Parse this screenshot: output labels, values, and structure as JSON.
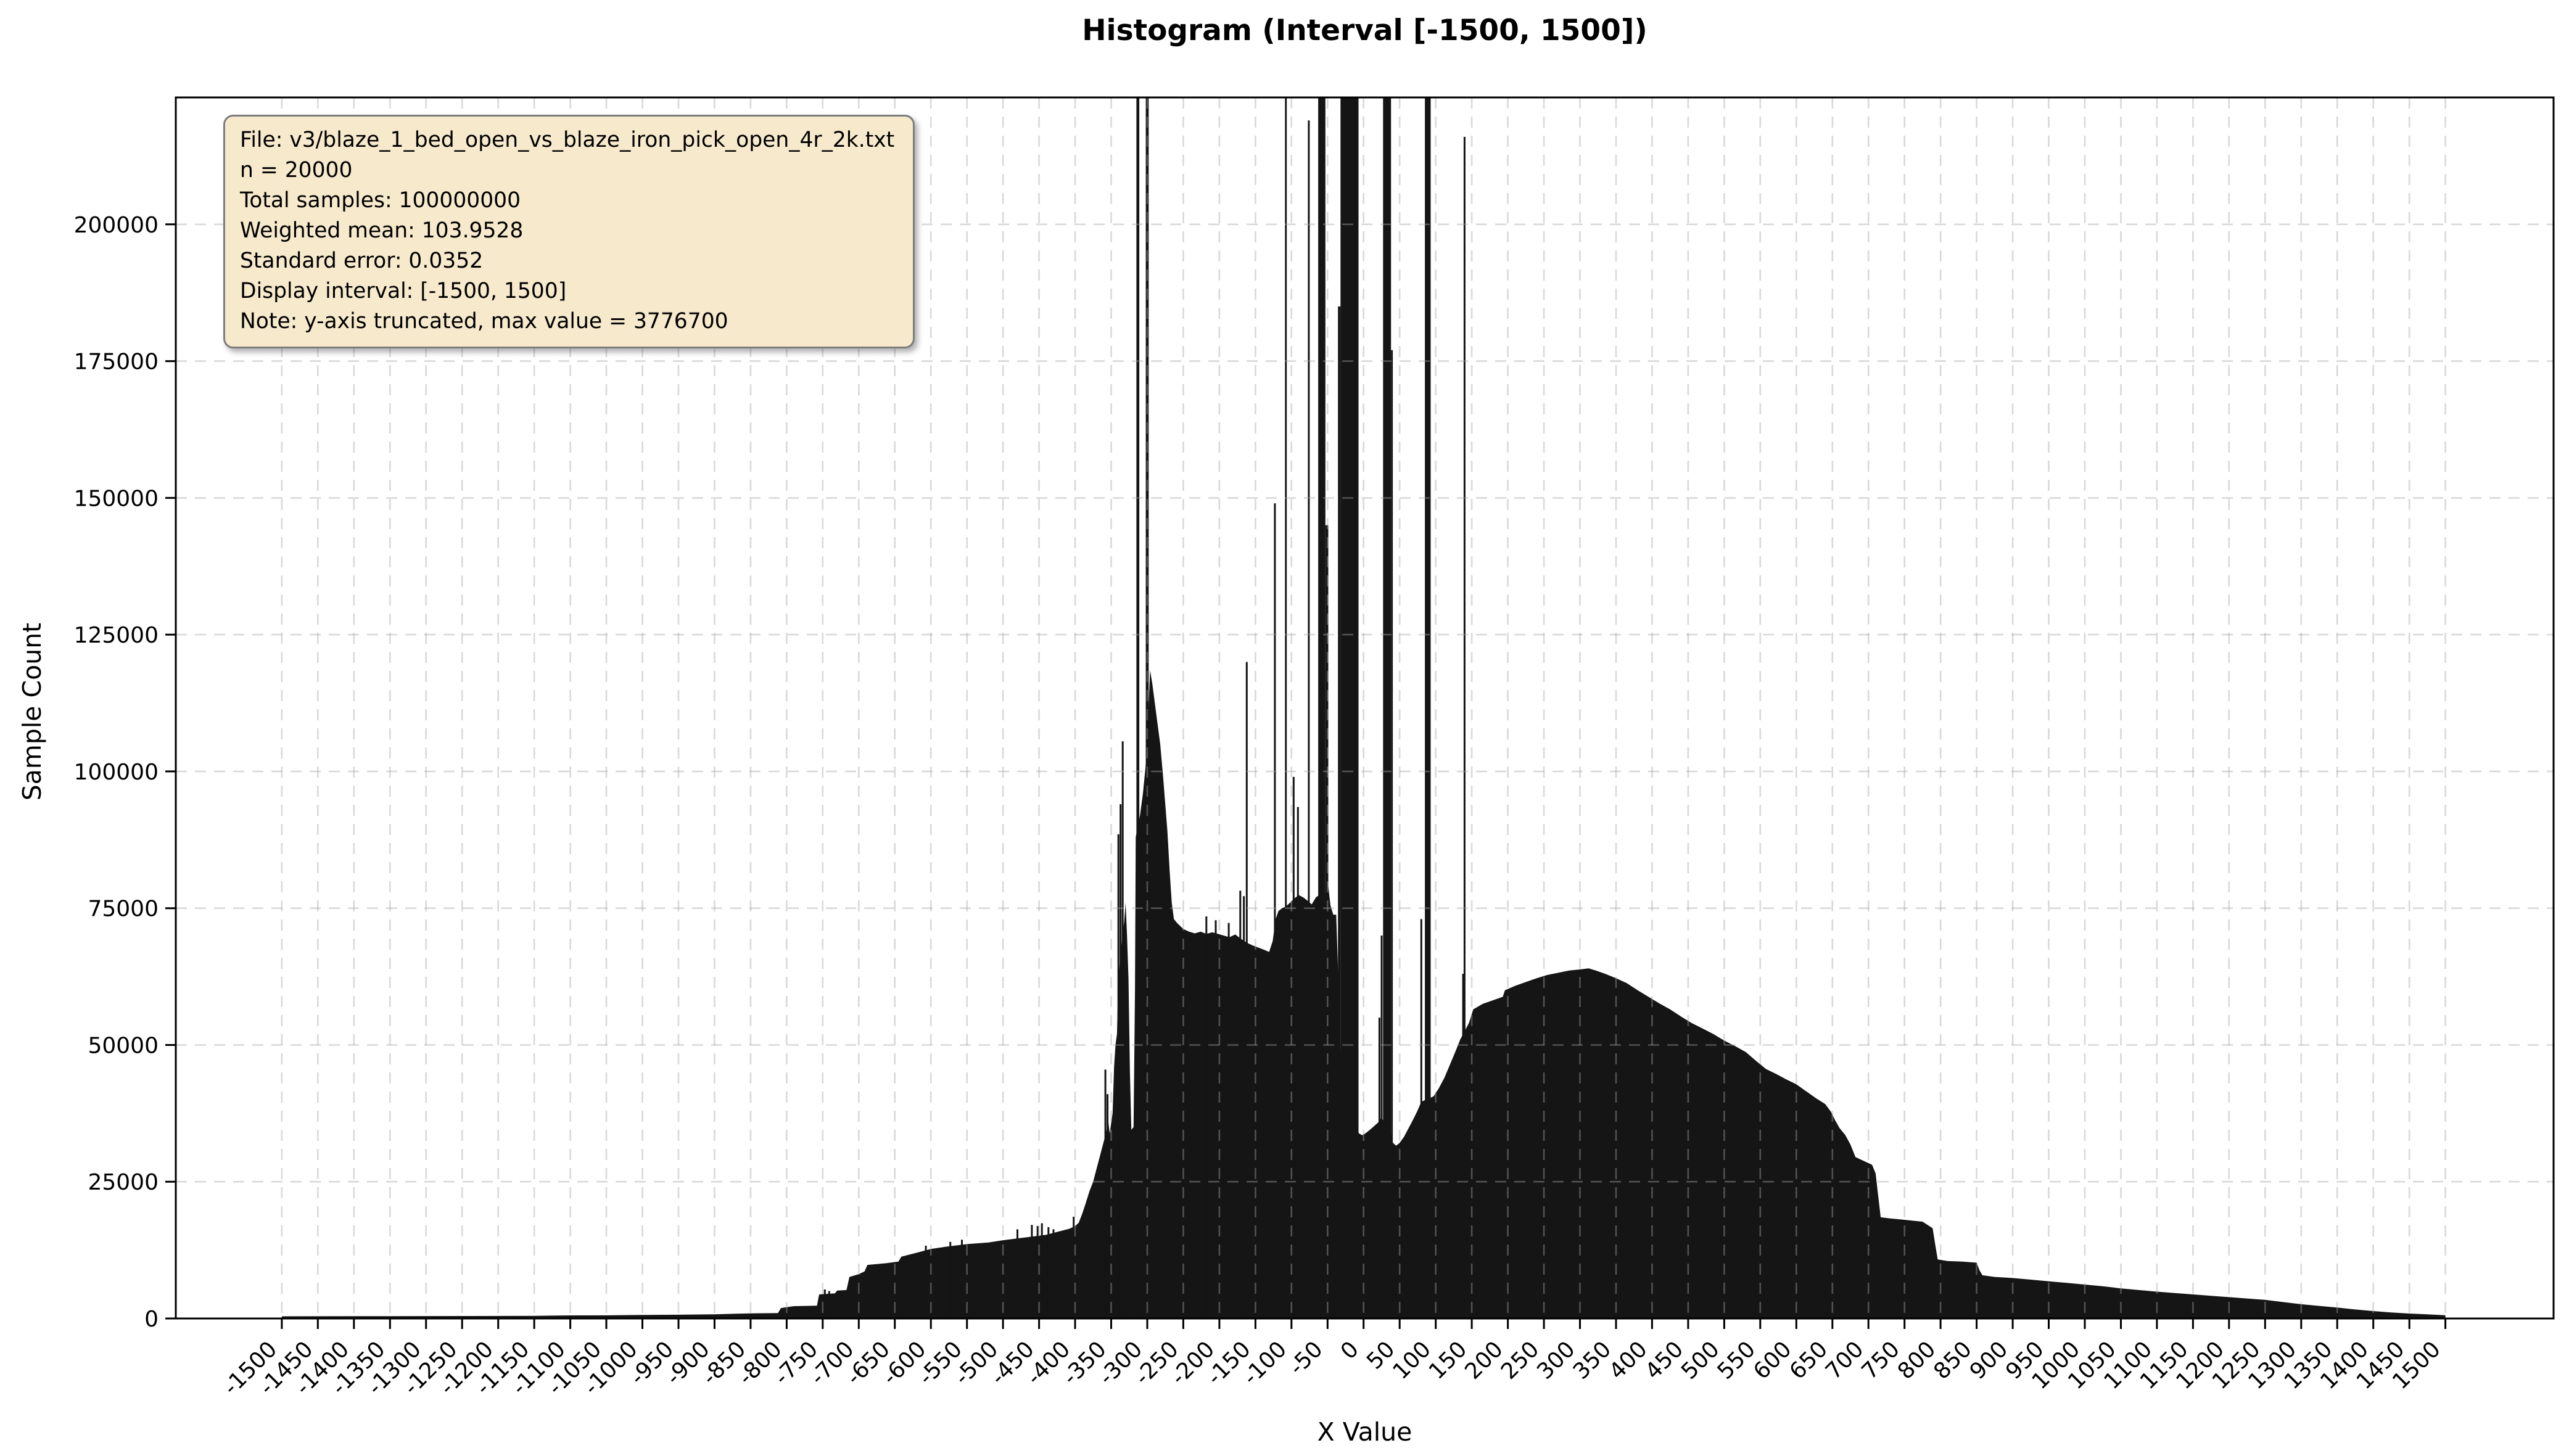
{
  "title": "Histogram (Interval [-1500, 1500])",
  "info_box": {
    "lines": [
      "File: v3/blaze_1_bed_open_vs_blaze_iron_pick_open_4r_2k.txt",
      "n = 20000",
      "Total samples: 100000000",
      "Weighted mean: 103.9528",
      "Standard error: 0.0352",
      "Display interval: [-1500, 1500]",
      "Note: y-axis truncated, max value = 3776700"
    ]
  },
  "axes": {
    "xlabel": "X Value",
    "ylabel": "Sample Count",
    "xlim": [
      -1647,
      1650
    ],
    "ylim": [
      0,
      223200
    ],
    "x_ticks": [
      -1500,
      -1450,
      -1400,
      -1350,
      -1300,
      -1250,
      -1200,
      -1150,
      -1100,
      -1050,
      -1000,
      -950,
      -900,
      -850,
      -800,
      -750,
      -700,
      -650,
      -600,
      -550,
      -500,
      -450,
      -400,
      -350,
      -300,
      -250,
      -200,
      -150,
      -100,
      -50,
      0,
      50,
      100,
      150,
      200,
      250,
      300,
      350,
      400,
      450,
      500,
      550,
      600,
      650,
      700,
      750,
      800,
      850,
      900,
      950,
      1000,
      1050,
      1100,
      1150,
      1200,
      1250,
      1300,
      1350,
      1400,
      1450,
      1500
    ],
    "y_ticks": [
      0,
      25000,
      50000,
      75000,
      100000,
      125000,
      150000,
      175000,
      200000
    ],
    "grid": true
  },
  "colors": {
    "bar": "#151515",
    "grid": "rgba(165,165,165,0.42)",
    "frame": "#000000",
    "text": "#000000",
    "box_bg": "#f6e9cc",
    "box_border": "#7d7d7d"
  },
  "chart_data": {
    "type": "bar",
    "subtype": "histogram",
    "title": "Histogram (Interval [-1500, 1500])",
    "xlabel": "X Value",
    "ylabel": "Sample Count",
    "n_bins": 20000,
    "total_samples": 100000000,
    "weighted_mean": 103.9528,
    "standard_error": 0.0352,
    "display_interval": [
      -1500,
      1500
    ],
    "y_axis_truncated": true,
    "max_bin_value": 3776700,
    "xlim": [
      -1647,
      1650
    ],
    "ylim": [
      0,
      223200
    ],
    "legend": "none",
    "envelope": [
      [
        -1500,
        400
      ],
      [
        -1450,
        410
      ],
      [
        -1400,
        420
      ],
      [
        -1350,
        430
      ],
      [
        -1300,
        440
      ],
      [
        -1250,
        450
      ],
      [
        -1200,
        460
      ],
      [
        -1150,
        490
      ],
      [
        -1100,
        560
      ],
      [
        -1050,
        580
      ],
      [
        -1000,
        640
      ],
      [
        -950,
        690
      ],
      [
        -900,
        770
      ],
      [
        -870,
        870
      ],
      [
        -845,
        950
      ],
      [
        -812,
        980
      ],
      [
        -808,
        1900
      ],
      [
        -790,
        2250
      ],
      [
        -758,
        2350
      ],
      [
        -755,
        4400
      ],
      [
        -733,
        4600
      ],
      [
        -730,
        5100
      ],
      [
        -717,
        5200
      ],
      [
        -713,
        7600
      ],
      [
        -700,
        8100
      ],
      [
        -692,
        8600
      ],
      [
        -688,
        9800
      ],
      [
        -662,
        10100
      ],
      [
        -645,
        10400
      ],
      [
        -641,
        11300
      ],
      [
        -620,
        12000
      ],
      [
        -600,
        12700
      ],
      [
        -580,
        13100
      ],
      [
        -550,
        13600
      ],
      [
        -520,
        13900
      ],
      [
        -500,
        14300
      ],
      [
        -470,
        14800
      ],
      [
        -440,
        15300
      ],
      [
        -420,
        16000
      ],
      [
        -408,
        16400
      ],
      [
        -400,
        16900
      ],
      [
        -395,
        17500
      ],
      [
        -390,
        19200
      ],
      [
        -385,
        21200
      ],
      [
        -380,
        23300
      ],
      [
        -375,
        25000
      ],
      [
        -370,
        27500
      ],
      [
        -365,
        30000
      ],
      [
        -360,
        32500
      ],
      [
        -357,
        34000
      ],
      [
        -354,
        36000
      ],
      [
        -352,
        33800
      ],
      [
        -350,
        35700
      ],
      [
        -348,
        37500
      ],
      [
        -346,
        46000
      ],
      [
        -344,
        50000
      ],
      [
        -342,
        52000
      ],
      [
        -340,
        62000
      ],
      [
        -338,
        65000
      ],
      [
        -336,
        68000
      ],
      [
        -334,
        70500
      ],
      [
        -332,
        72500
      ],
      [
        -330,
        76000
      ],
      [
        -328,
        70000
      ],
      [
        -326,
        62000
      ],
      [
        -324,
        45000
      ],
      [
        -322,
        34500
      ],
      [
        -319,
        35000
      ],
      [
        -317,
        60000
      ],
      [
        -316,
        88000
      ],
      [
        -313,
        90000
      ],
      [
        -310,
        92000
      ],
      [
        -306,
        96000
      ],
      [
        -303,
        100000
      ],
      [
        -300,
        104000
      ],
      [
        -298,
        112000
      ],
      [
        -296,
        118500
      ],
      [
        -293,
        116000
      ],
      [
        -290,
        113000
      ],
      [
        -286,
        109000
      ],
      [
        -282,
        105000
      ],
      [
        -278,
        99000
      ],
      [
        -275,
        94000
      ],
      [
        -272,
        89000
      ],
      [
        -269,
        82000
      ],
      [
        -266,
        76000
      ],
      [
        -263,
        73000
      ],
      [
        -258,
        72200
      ],
      [
        -250,
        71200
      ],
      [
        -242,
        70700
      ],
      [
        -234,
        70400
      ],
      [
        -226,
        70700
      ],
      [
        -218,
        70300
      ],
      [
        -210,
        70600
      ],
      [
        -202,
        70300
      ],
      [
        -194,
        70000
      ],
      [
        -186,
        69700
      ],
      [
        -178,
        70200
      ],
      [
        -170,
        69400
      ],
      [
        -162,
        68700
      ],
      [
        -154,
        68200
      ],
      [
        -146,
        67800
      ],
      [
        -138,
        67400
      ],
      [
        -131,
        67000
      ],
      [
        -126,
        69000
      ],
      [
        -122,
        73000
      ],
      [
        -118,
        74500
      ],
      [
        -113,
        75000
      ],
      [
        -108,
        75300
      ],
      [
        -102,
        76000
      ],
      [
        -96,
        76800
      ],
      [
        -90,
        77400
      ],
      [
        -84,
        77000
      ],
      [
        -78,
        76400
      ],
      [
        -72,
        75700
      ],
      [
        -66,
        77000
      ],
      [
        -60,
        77500
      ],
      [
        -55,
        77000
      ],
      [
        -49,
        79000
      ],
      [
        -46,
        75500
      ],
      [
        -42,
        73800
      ],
      [
        -38,
        73800
      ],
      [
        -35,
        62000
      ],
      [
        -30,
        40000
      ],
      [
        -20,
        36000
      ],
      [
        -10,
        34500
      ],
      [
        -6,
        33800
      ],
      [
        -2,
        33500
      ],
      [
        2,
        33800
      ],
      [
        8,
        34400
      ],
      [
        14,
        35100
      ],
      [
        20,
        35800
      ],
      [
        24,
        36600
      ],
      [
        30,
        36000
      ],
      [
        36,
        35000
      ],
      [
        40,
        32200
      ],
      [
        45,
        31600
      ],
      [
        50,
        32100
      ],
      [
        56,
        33200
      ],
      [
        62,
        34700
      ],
      [
        68,
        36200
      ],
      [
        74,
        37800
      ],
      [
        80,
        39600
      ],
      [
        86,
        40000
      ],
      [
        92,
        40300
      ],
      [
        97,
        40600
      ],
      [
        104,
        42000
      ],
      [
        112,
        44000
      ],
      [
        120,
        46500
      ],
      [
        128,
        49000
      ],
      [
        134,
        51000
      ],
      [
        140,
        52500
      ],
      [
        146,
        54000
      ],
      [
        152,
        56500
      ],
      [
        165,
        57500
      ],
      [
        180,
        58200
      ],
      [
        193,
        58800
      ],
      [
        196,
        60000
      ],
      [
        210,
        60800
      ],
      [
        225,
        61500
      ],
      [
        240,
        62200
      ],
      [
        255,
        62800
      ],
      [
        270,
        63200
      ],
      [
        285,
        63600
      ],
      [
        300,
        63800
      ],
      [
        312,
        64000
      ],
      [
        322,
        63600
      ],
      [
        335,
        63000
      ],
      [
        350,
        62200
      ],
      [
        365,
        61300
      ],
      [
        380,
        60000
      ],
      [
        395,
        58800
      ],
      [
        410,
        57600
      ],
      [
        425,
        56500
      ],
      [
        440,
        55200
      ],
      [
        455,
        54000
      ],
      [
        470,
        53000
      ],
      [
        485,
        52000
      ],
      [
        500,
        50800
      ],
      [
        515,
        49800
      ],
      [
        530,
        48700
      ],
      [
        545,
        47000
      ],
      [
        558,
        45600
      ],
      [
        572,
        44700
      ],
      [
        586,
        43700
      ],
      [
        600,
        42800
      ],
      [
        614,
        41500
      ],
      [
        628,
        40200
      ],
      [
        640,
        39200
      ],
      [
        648,
        37800
      ],
      [
        654,
        36200
      ],
      [
        660,
        34800
      ],
      [
        668,
        33500
      ],
      [
        675,
        31800
      ],
      [
        682,
        29500
      ],
      [
        695,
        28700
      ],
      [
        705,
        28100
      ],
      [
        710,
        26500
      ],
      [
        713,
        23000
      ],
      [
        717,
        18500
      ],
      [
        730,
        18300
      ],
      [
        745,
        18100
      ],
      [
        760,
        17900
      ],
      [
        775,
        17700
      ],
      [
        789,
        16500
      ],
      [
        792,
        14000
      ],
      [
        796,
        10800
      ],
      [
        810,
        10500
      ],
      [
        830,
        10400
      ],
      [
        850,
        10200
      ],
      [
        854,
        8800
      ],
      [
        858,
        7900
      ],
      [
        875,
        7600
      ],
      [
        900,
        7400
      ],
      [
        925,
        7100
      ],
      [
        950,
        6800
      ],
      [
        975,
        6500
      ],
      [
        1000,
        6200
      ],
      [
        1025,
        5900
      ],
      [
        1050,
        5500
      ],
      [
        1075,
        5200
      ],
      [
        1100,
        4900
      ],
      [
        1125,
        4650
      ],
      [
        1150,
        4400
      ],
      [
        1175,
        4150
      ],
      [
        1200,
        3900
      ],
      [
        1225,
        3650
      ],
      [
        1250,
        3400
      ],
      [
        1275,
        3000
      ],
      [
        1300,
        2600
      ],
      [
        1325,
        2300
      ],
      [
        1350,
        2000
      ],
      [
        1375,
        1650
      ],
      [
        1400,
        1350
      ],
      [
        1425,
        1100
      ],
      [
        1450,
        900
      ],
      [
        1475,
        750
      ],
      [
        1500,
        600
      ]
    ],
    "spikes": [
      [
        -747,
        5300
      ],
      [
        -741,
        5000
      ],
      [
        -607,
        13300
      ],
      [
        -573,
        14000
      ],
      [
        -557,
        14400
      ],
      [
        -480,
        16300
      ],
      [
        -460,
        17100
      ],
      [
        -452,
        16900
      ],
      [
        -446,
        17400
      ],
      [
        -437,
        16700
      ],
      [
        -430,
        16300
      ],
      [
        -402,
        18600
      ],
      [
        -358,
        45500
      ],
      [
        -355,
        41000
      ],
      [
        -340,
        88500
      ],
      [
        -337,
        94000
      ],
      [
        -334,
        105500
      ],
      [
        -218,
        73500
      ],
      [
        -205,
        72800
      ],
      [
        -187,
        72300
      ],
      [
        -171,
        78200
      ],
      [
        -166,
        77200
      ],
      [
        -162,
        120000
      ],
      [
        -123,
        149000
      ],
      [
        -97,
        99000
      ],
      [
        -91,
        93500
      ],
      [
        -76,
        219000
      ],
      [
        22,
        55000
      ],
      [
        25,
        70000
      ],
      [
        80,
        73000
      ],
      [
        138,
        63000
      ],
      [
        140,
        216000
      ]
    ],
    "offtop_columns": [
      [
        -315,
        -311
      ],
      [
        -302,
        -298
      ],
      [
        -109,
        -106.5
      ],
      [
        -63,
        -53
      ],
      [
        -32,
        -7
      ],
      [
        27,
        38
      ],
      [
        85,
        93
      ]
    ],
    "partial_columns": [
      [
        -53,
        -49,
        145000
      ],
      [
        -35.5,
        -32,
        185000
      ],
      [
        38,
        40.5,
        177000
      ]
    ]
  }
}
